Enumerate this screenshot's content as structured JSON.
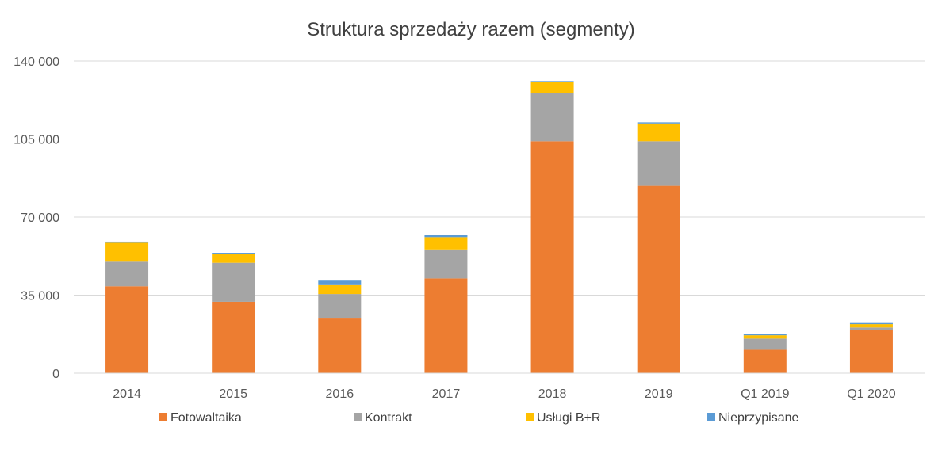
{
  "chart_data": {
    "type": "bar",
    "stacked": true,
    "title": "Struktura sprzedaży razem (segmenty)",
    "xlabel": "",
    "ylabel": "",
    "ylim": [
      0,
      140000
    ],
    "yticks": [
      0,
      35000,
      70000,
      105000,
      140000
    ],
    "ytick_labels": [
      "0",
      "35 000",
      "70 000",
      "105 000",
      "140 000"
    ],
    "grid": true,
    "legend_position": "bottom",
    "categories": [
      "2014",
      "2015",
      "2016",
      "2017",
      "2018",
      "2019",
      "Q1 2019",
      "Q1 2020"
    ],
    "series": [
      {
        "name": "Fotowaltaika",
        "color": "#ED7D31",
        "values": [
          39000,
          32000,
          24500,
          42500,
          104000,
          84000,
          10500,
          19500
        ]
      },
      {
        "name": "Kontrakt",
        "color": "#A5A5A5",
        "values": [
          11000,
          17500,
          11000,
          13000,
          21500,
          20000,
          5000,
          1000
        ]
      },
      {
        "name": "Usługi B+R",
        "color": "#FFC000",
        "values": [
          8500,
          4000,
          4000,
          5500,
          5000,
          8000,
          1500,
          1500
        ]
      },
      {
        "name": "Nieprzypisane",
        "color": "#5B9BD5",
        "values": [
          500,
          500,
          2000,
          1000,
          500,
          500,
          500,
          500
        ]
      }
    ]
  }
}
